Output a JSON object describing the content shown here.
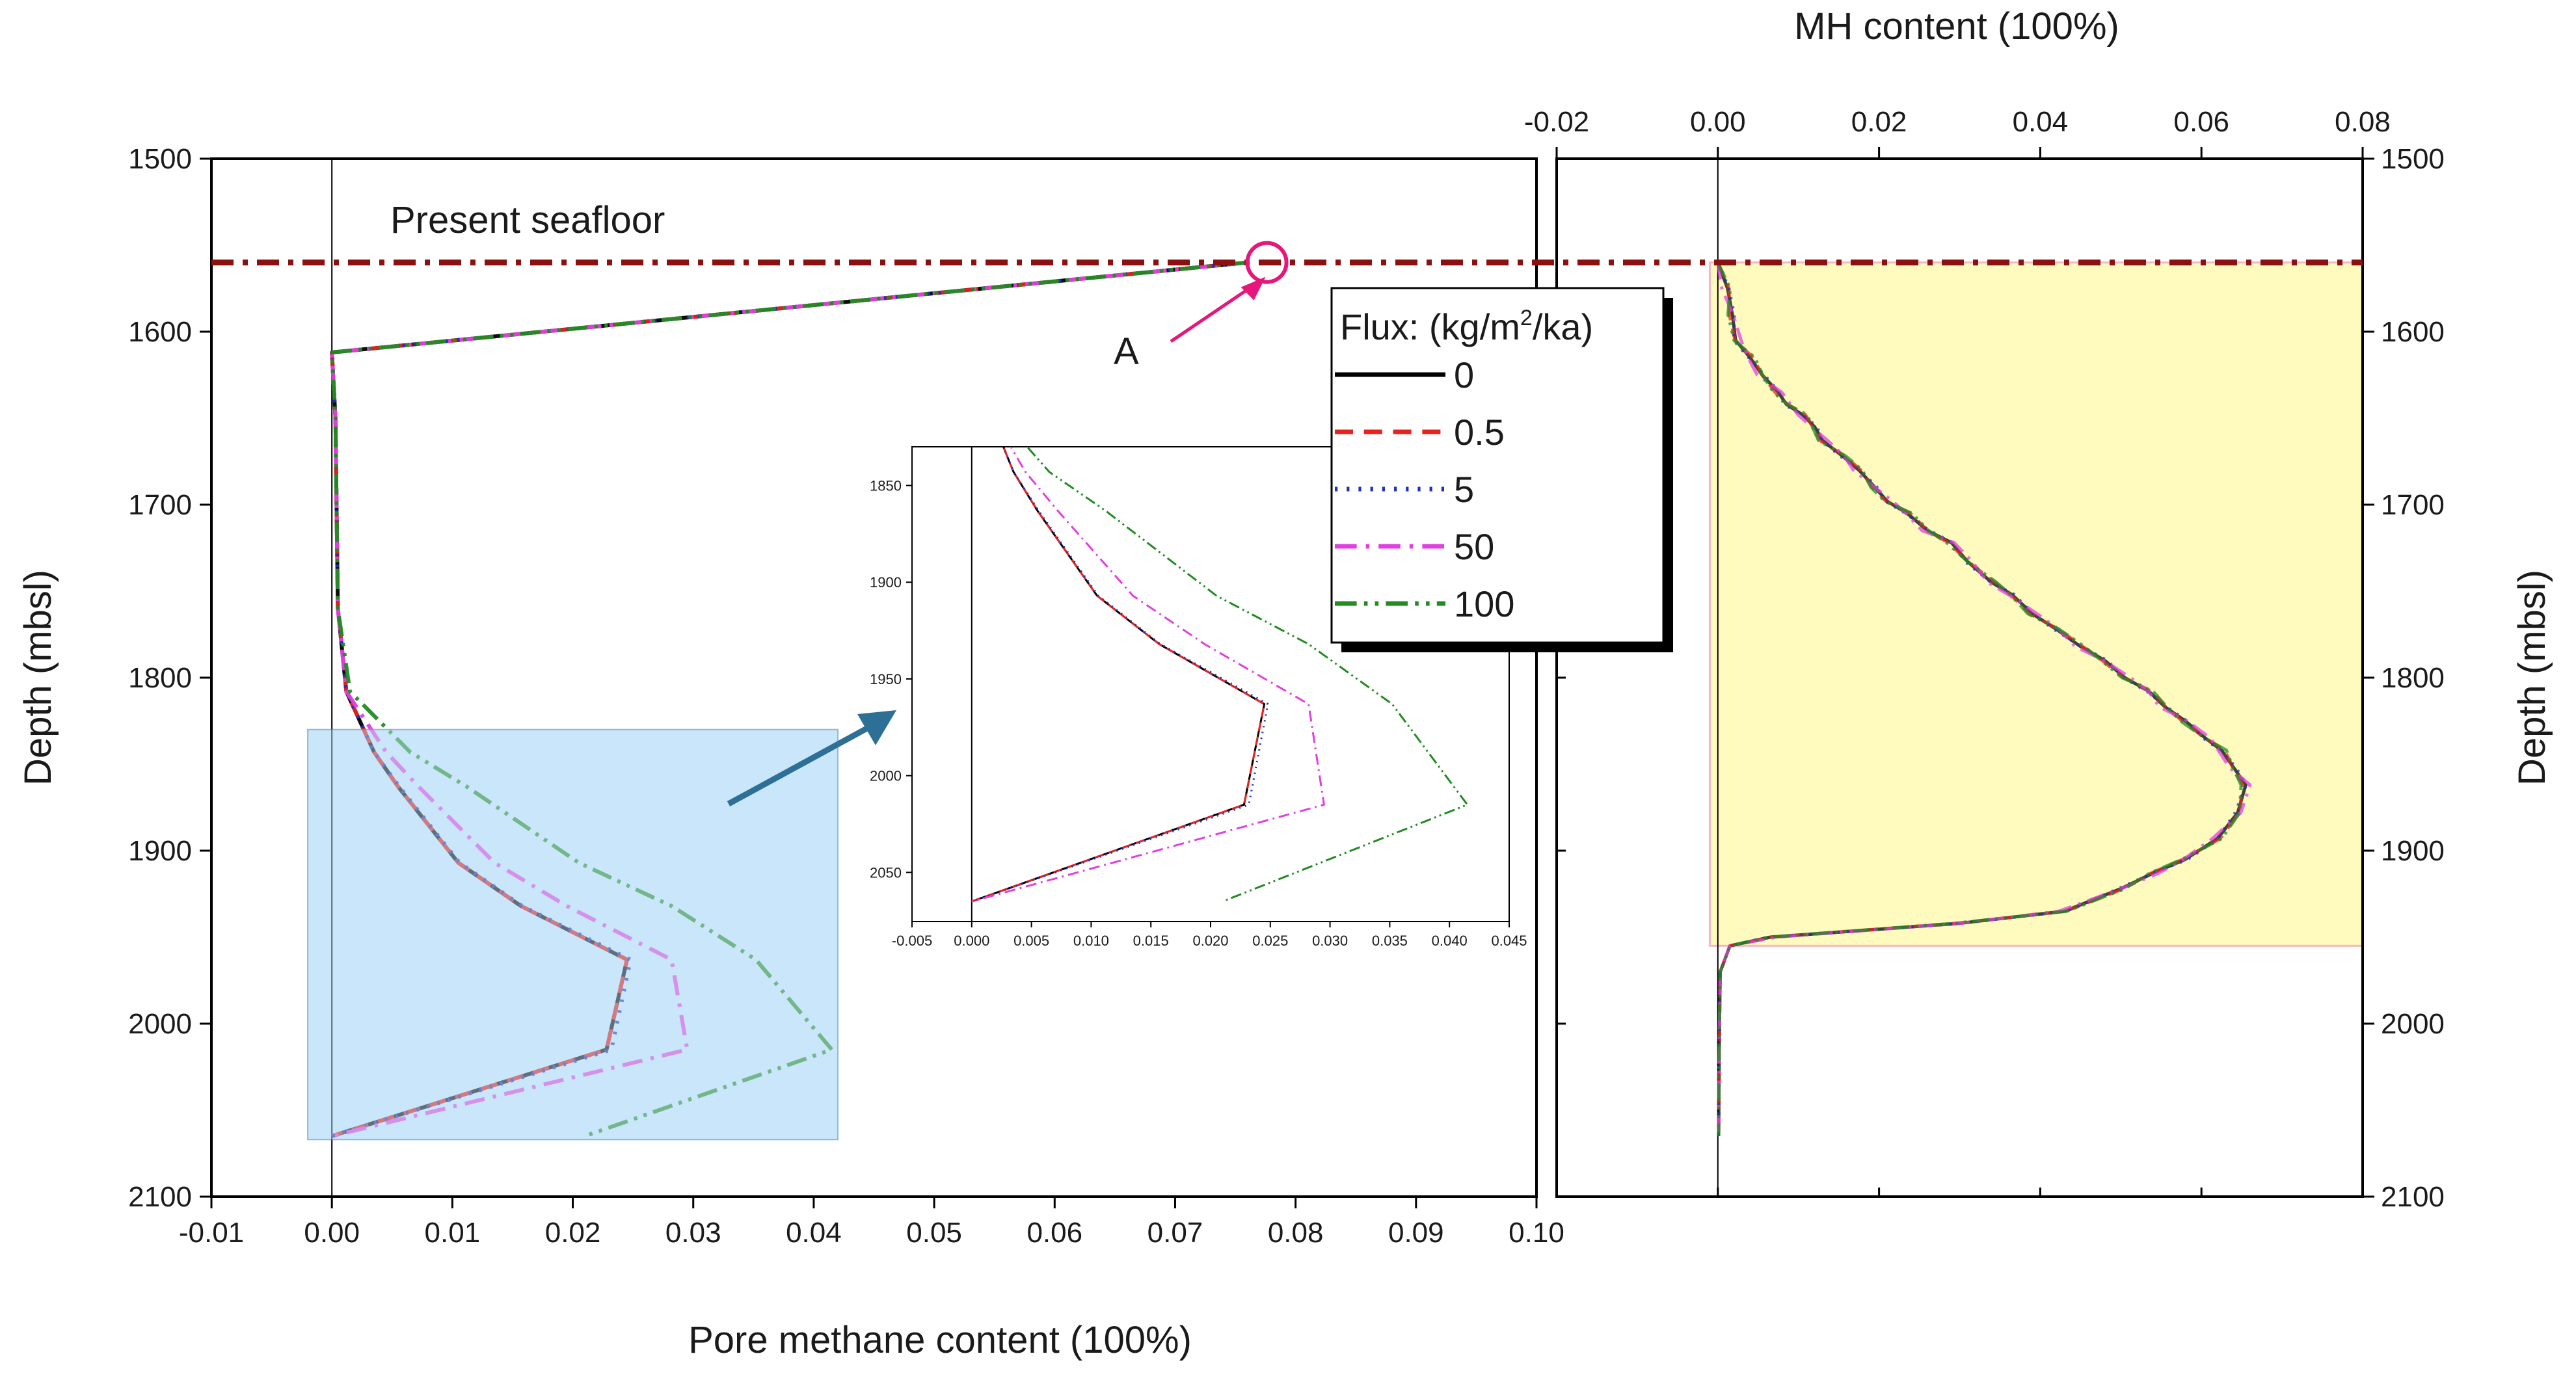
{
  "chart_data": [
    {
      "type": "line",
      "id": "pore-methane",
      "xlabel": "Pore methane content (100%)",
      "ylabel": "Depth (mbsl)",
      "xlim": [
        -0.01,
        0.1
      ],
      "ylim": [
        1500,
        2100
      ],
      "xticks": [
        -0.01,
        0.0,
        0.01,
        0.02,
        0.03,
        0.04,
        0.05,
        0.06,
        0.07,
        0.08,
        0.09,
        0.1
      ],
      "xtick_labels": [
        "-0.01",
        "0.00",
        "0.01",
        "0.02",
        "0.03",
        "0.04",
        "0.05",
        "0.06",
        "0.07",
        "0.08",
        "0.09",
        "0.10"
      ],
      "yticks": [
        1500,
        1600,
        1700,
        1800,
        1900,
        2000,
        2100
      ],
      "ytick_labels": [
        "1500",
        "1600",
        "1700",
        "1800",
        "1900",
        "2000",
        "2100"
      ],
      "seafloor_depth": 1560,
      "annotations": {
        "seafloor": "Present seafloor",
        "point": "A"
      },
      "point_A": [
        0.076,
        1560
      ],
      "series": [
        {
          "name": "0",
          "color": "#000000",
          "dash": "solid",
          "x": [
            0.076,
            0.0,
            0.0003,
            0.0005,
            0.0012,
            0.0035,
            0.0055,
            0.0105,
            0.0157,
            0.0245,
            0.0228,
            0.0
          ],
          "y": [
            1560,
            1612,
            1650,
            1760,
            1808,
            1843,
            1863,
            1907,
            1932,
            1963,
            2015,
            2065
          ]
        },
        {
          "name": "0.5",
          "color": "#e8231e",
          "dash": "dash",
          "x": [
            0.076,
            0.0,
            0.0003,
            0.0005,
            0.0012,
            0.0035,
            0.0055,
            0.0105,
            0.0157,
            0.0245,
            0.0228,
            0.0
          ],
          "y": [
            1560,
            1612,
            1650,
            1760,
            1808,
            1843,
            1863,
            1907,
            1932,
            1963,
            2015,
            2065
          ]
        },
        {
          "name": "5",
          "color": "#1f2fbf",
          "dash": "dot",
          "x": [
            0.076,
            0.0,
            0.0003,
            0.0005,
            0.0012,
            0.0035,
            0.0056,
            0.0106,
            0.0158,
            0.0248,
            0.0232,
            0.0
          ],
          "y": [
            1560,
            1612,
            1650,
            1760,
            1808,
            1843,
            1863,
            1907,
            1932,
            1963,
            2015,
            2065
          ]
        },
        {
          "name": "50",
          "color": "#e040e0",
          "dash": "dashdot",
          "x": [
            0.076,
            0.0,
            0.0003,
            0.0005,
            0.0012,
            0.0045,
            0.0072,
            0.0135,
            0.0195,
            0.0282,
            0.0295,
            0.0
          ],
          "y": [
            1560,
            1612,
            1650,
            1760,
            1808,
            1843,
            1863,
            1907,
            1932,
            1963,
            2015,
            2065
          ]
        },
        {
          "name": "100",
          "color": "#228b22",
          "dash": "dashdotdot",
          "x": [
            0.076,
            0.0,
            0.0003,
            0.0005,
            0.0015,
            0.0065,
            0.0112,
            0.0205,
            0.0282,
            0.0352,
            0.0415,
            0.021
          ],
          "y": [
            1560,
            1612,
            1650,
            1760,
            1808,
            1843,
            1863,
            1907,
            1932,
            1963,
            2015,
            2065
          ]
        }
      ],
      "legend": {
        "title_prefix": "Flux: (kg/m",
        "title_sup": "2",
        "title_suffix": "/ka)",
        "location": "upper-right"
      },
      "zoom_box": {
        "x": [
          -0.002,
          0.042
        ],
        "y": [
          1830,
          2067
        ]
      },
      "inset": {
        "xlim": [
          -0.005,
          0.045
        ],
        "ylim": [
          1830,
          2067
        ],
        "xticks": [
          -0.005,
          0.0,
          0.005,
          0.01,
          0.015,
          0.02,
          0.025,
          0.03,
          0.035,
          0.04,
          0.045
        ],
        "xtick_labels": [
          "-0.005",
          "0.000",
          "0.005",
          "0.010",
          "0.015",
          "0.020",
          "0.025",
          "0.030",
          "0.035",
          "0.040",
          "0.045"
        ],
        "yticks": [
          1850,
          1900,
          1950,
          2000,
          2050
        ],
        "ytick_labels": [
          "1850",
          "1900",
          "1950",
          "2000",
          "2050"
        ]
      }
    },
    {
      "type": "line",
      "id": "mh-content",
      "xlabel": "MH content (100%)",
      "ylabel": "Depth (mbsl)",
      "xlim": [
        -0.02,
        0.08
      ],
      "ylim": [
        1500,
        2100
      ],
      "xticks": [
        -0.02,
        0.0,
        0.02,
        0.04,
        0.06,
        0.08
      ],
      "xtick_labels": [
        "-0.02",
        "0.00",
        "0.02",
        "0.04",
        "0.06",
        "0.08"
      ],
      "yticks": [
        1500,
        1600,
        1700,
        1800,
        1900,
        2000,
        2100
      ],
      "ytick_labels": [
        "1500",
        "1600",
        "1700",
        "1800",
        "1900",
        "2000",
        "2100"
      ],
      "seafloor_depth": 1560,
      "hydrate_zone": {
        "x": [
          -0.001,
          0.08
        ],
        "y": [
          1560,
          1955
        ],
        "color": "#fffbbf"
      },
      "profile": {
        "x": [
          0.0,
          0.0012,
          0.0018,
          0.0022,
          0.004,
          0.0055,
          0.0075,
          0.0085,
          0.0105,
          0.012,
          0.013,
          0.0155,
          0.0175,
          0.0195,
          0.021,
          0.0235,
          0.026,
          0.029,
          0.031,
          0.034,
          0.0365,
          0.039,
          0.042,
          0.045,
          0.048,
          0.0505,
          0.0535,
          0.0555,
          0.058,
          0.0605,
          0.0625,
          0.064,
          0.0655,
          0.0645,
          0.062,
          0.058,
          0.054,
          0.05,
          0.043,
          0.03,
          0.0065,
          0.0015,
          0.0003,
          0.0002,
          0.0001
        ],
        "y": [
          1560,
          1575,
          1590,
          1605,
          1615,
          1625,
          1635,
          1642,
          1648,
          1655,
          1663,
          1672,
          1680,
          1690,
          1698,
          1705,
          1715,
          1722,
          1733,
          1745,
          1752,
          1763,
          1772,
          1782,
          1790,
          1800,
          1808,
          1817,
          1825,
          1835,
          1842,
          1852,
          1862,
          1878,
          1893,
          1905,
          1913,
          1922,
          1935,
          1942,
          1950,
          1955,
          1970,
          2000,
          2065
        ],
        "series_colors": [
          "#000000",
          "#e8231e",
          "#1f2fbf",
          "#e040e0",
          "#228b22"
        ]
      }
    }
  ]
}
